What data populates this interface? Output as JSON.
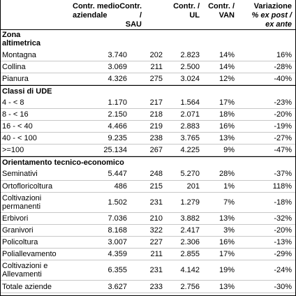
{
  "header": {
    "col1": "Contr. medio\naziendale",
    "col2": "Contr. /\nSAU",
    "col3": "Contr. /\nUL",
    "col4": "Contr. /\nVAN",
    "col5_line1": "Variazione",
    "col5_line2": "% ex post /",
    "col5_line3": "ex ante"
  },
  "sections": [
    {
      "title": "Zona\naltimetrica",
      "rows": [
        {
          "label": "Montagna",
          "c1": "3.740",
          "c2": "202",
          "c3": "2.823",
          "c4": "14%",
          "c5": "16%"
        },
        {
          "label": "Collina",
          "c1": "3.069",
          "c2": "211",
          "c3": "2.500",
          "c4": "14%",
          "c5": "-28%"
        },
        {
          "label": "Pianura",
          "c1": "4.326",
          "c2": "275",
          "c3": "3.024",
          "c4": "12%",
          "c5": "-40%"
        }
      ]
    },
    {
      "title": "Classi di UDE",
      "rows": [
        {
          "label": "4 - < 8",
          "c1": "1.170",
          "c2": "217",
          "c3": "1.564",
          "c4": "17%",
          "c5": "-23%"
        },
        {
          "label": "8 - < 16",
          "c1": "2.150",
          "c2": "218",
          "c3": "2.071",
          "c4": "18%",
          "c5": "-20%"
        },
        {
          "label": "16 - < 40",
          "c1": "4.466",
          "c2": "219",
          "c3": "2.883",
          "c4": "16%",
          "c5": "-19%"
        },
        {
          "label": "40 - < 100",
          "c1": "9.235",
          "c2": "238",
          "c3": "3.765",
          "c4": "13%",
          "c5": "-27%"
        },
        {
          "label": ">=100",
          "c1": "25.134",
          "c2": "267",
          "c3": "4.225",
          "c4": "9%",
          "c5": "-47%"
        }
      ]
    },
    {
      "title": "Orientamento tecnico-economico",
      "rows": [
        {
          "label": "Seminativi",
          "c1": "5.447",
          "c2": "248",
          "c3": "5.270",
          "c4": "28%",
          "c5": "-37%"
        },
        {
          "label": "Ortofloricoltura",
          "c1": "486",
          "c2": "215",
          "c3": "201",
          "c4": "1%",
          "c5": "118%"
        },
        {
          "label": "Coltivazioni\npermanenti",
          "c1": "1.502",
          "c2": "231",
          "c3": "1.279",
          "c4": "7%",
          "c5": "-18%"
        },
        {
          "label": "Erbivori",
          "c1": "7.036",
          "c2": "210",
          "c3": "3.882",
          "c4": "13%",
          "c5": "-32%"
        },
        {
          "label": "Granivori",
          "c1": "8.168",
          "c2": "322",
          "c3": "2.417",
          "c4": "3%",
          "c5": "-20%"
        },
        {
          "label": "Policoltura",
          "c1": "3.007",
          "c2": "227",
          "c3": "2.306",
          "c4": "16%",
          "c5": "-13%"
        },
        {
          "label": "Poliallevamento",
          "c1": "4.359",
          "c2": "211",
          "c3": "2.855",
          "c4": "17%",
          "c5": "-29%"
        },
        {
          "label": "Coltivazioni e\nAllevamenti",
          "c1": "6.355",
          "c2": "231",
          "c3": "4.142",
          "c4": "19%",
          "c5": "-24%"
        },
        {
          "label": "Totale aziende",
          "c1": "3.627",
          "c2": "233",
          "c3": "2.756",
          "c4": "13%",
          "c5": "-30%"
        }
      ]
    }
  ]
}
